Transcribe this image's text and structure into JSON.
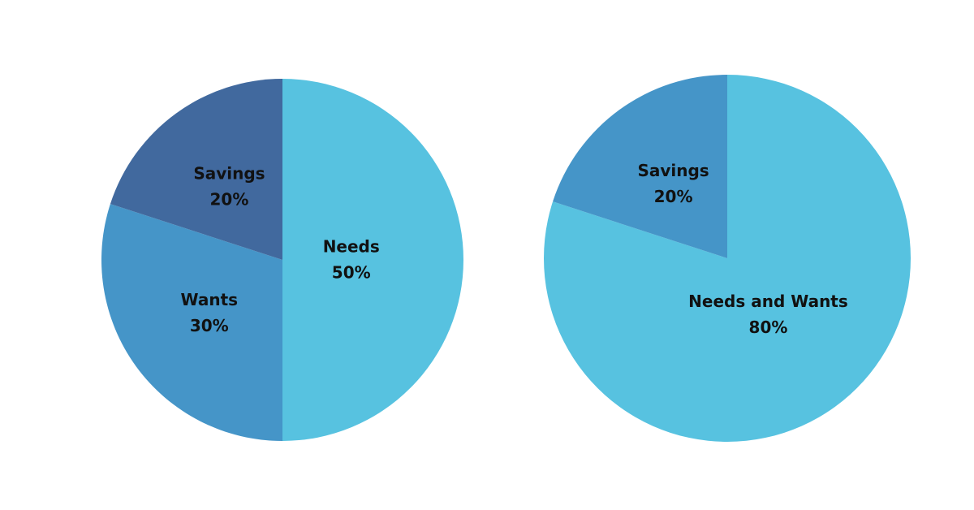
{
  "chart_data": [
    {
      "type": "pie",
      "categories": [
        "Needs",
        "Wants",
        "Savings"
      ],
      "values": [
        50,
        30,
        20
      ],
      "value_labels": [
        "50%",
        "30%",
        "20%"
      ],
      "colors": [
        "#57c2e0",
        "#4595c8",
        "#41699e"
      ]
    },
    {
      "type": "pie",
      "categories": [
        "Needs and Wants",
        "Savings"
      ],
      "values": [
        80,
        20
      ],
      "value_labels": [
        "80%",
        "20%"
      ],
      "colors": [
        "#57c2e0",
        "#4595c8"
      ]
    }
  ]
}
